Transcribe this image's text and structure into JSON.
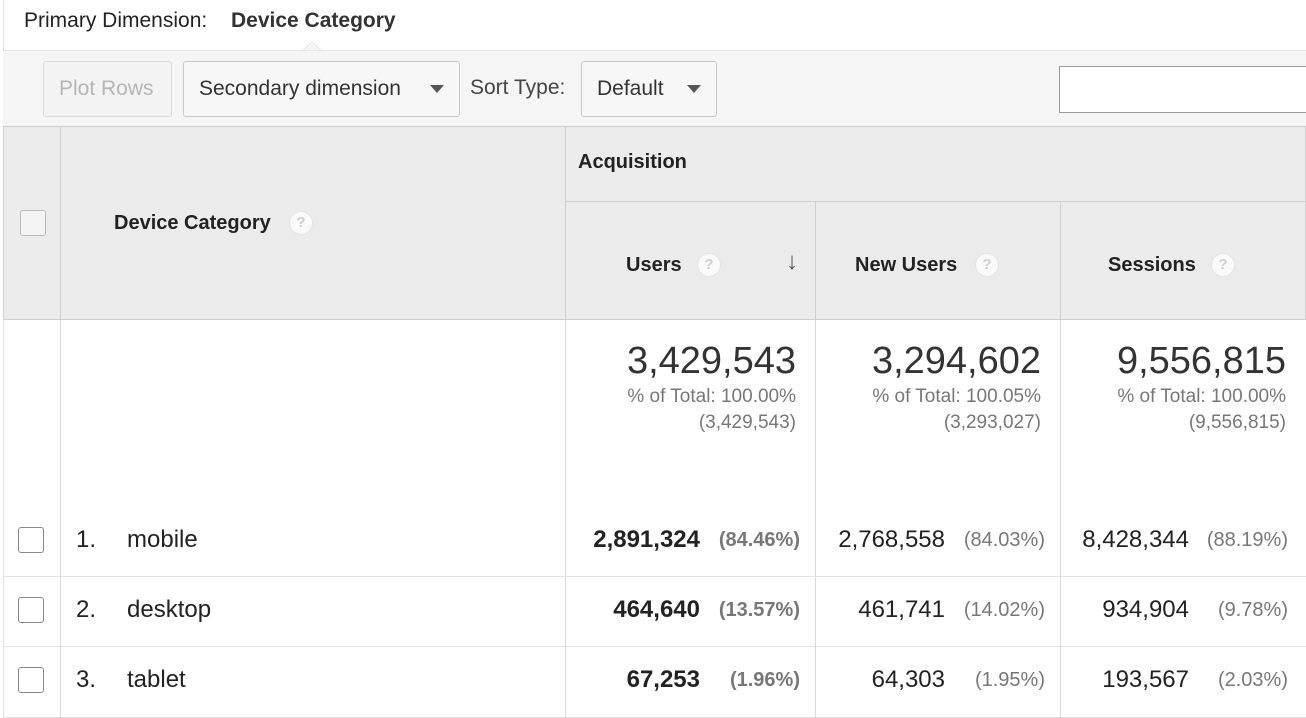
{
  "primary_dimension": {
    "label": "Primary Dimension:",
    "value": "Device Category"
  },
  "toolbar": {
    "plot_rows": "Plot Rows",
    "secondary_dimension": "Secondary dimension",
    "sort_type_label": "Sort Type:",
    "sort_type_value": "Default",
    "search_value": ""
  },
  "table": {
    "dimension_header": "Device Category",
    "group_header": "Acquisition",
    "columns": [
      "Users",
      "New Users",
      "Sessions"
    ],
    "help_glyph": "?",
    "sort_arrow": "🡣",
    "totals": [
      {
        "value": "3,429,543",
        "pct": "% of Total: 100.00%",
        "abs": "(3,429,543)"
      },
      {
        "value": "3,294,602",
        "pct": "% of Total: 100.05%",
        "abs": "(3,293,027)"
      },
      {
        "value": "9,556,815",
        "pct": "% of Total: 100.00%",
        "abs": "(9,556,815)"
      }
    ],
    "rows": [
      {
        "num": "1.",
        "name": "mobile",
        "users": "2,891,324",
        "users_pct": "(84.46%)",
        "new_users": "2,768,558",
        "new_users_pct": "(84.03%)",
        "sessions": "8,428,344",
        "sessions_pct": "(88.19%)"
      },
      {
        "num": "2.",
        "name": "desktop",
        "users": "464,640",
        "users_pct": "(13.57%)",
        "new_users": "461,741",
        "new_users_pct": "(14.02%)",
        "sessions": "934,904",
        "sessions_pct": "(9.78%)"
      },
      {
        "num": "3.",
        "name": "tablet",
        "users": "67,253",
        "users_pct": "(1.96%)",
        "new_users": "64,303",
        "new_users_pct": "(1.95%)",
        "sessions": "193,567",
        "sessions_pct": "(2.03%)"
      }
    ]
  }
}
